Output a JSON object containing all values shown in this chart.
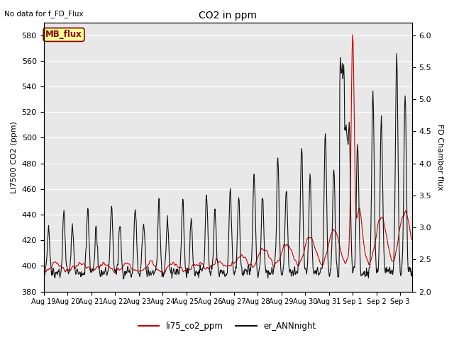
{
  "title": "CO2 in ppm",
  "top_left_text": "No data for f_FD_Flux",
  "ylabel_left": "LI7500 CO2 (ppm)",
  "ylabel_right": "FD Chamber flux",
  "xlabel": "",
  "ylim_left": [
    380,
    590
  ],
  "ylim_right": [
    2.0,
    6.2
  ],
  "yticks_left": [
    380,
    400,
    420,
    440,
    460,
    480,
    500,
    520,
    540,
    560,
    580
  ],
  "yticks_right": [
    2.0,
    2.5,
    3.0,
    3.5,
    4.0,
    4.5,
    5.0,
    5.5,
    6.0
  ],
  "bg_color": "#e8e8e8",
  "line1_color": "#cc0000",
  "line2_color": "#111111",
  "legend_labels": [
    "li75_co2_ppm",
    "er_ANNnight"
  ],
  "box_label": "MB_flux",
  "box_color": "#ffff99",
  "box_edge_color": "#8b0000"
}
